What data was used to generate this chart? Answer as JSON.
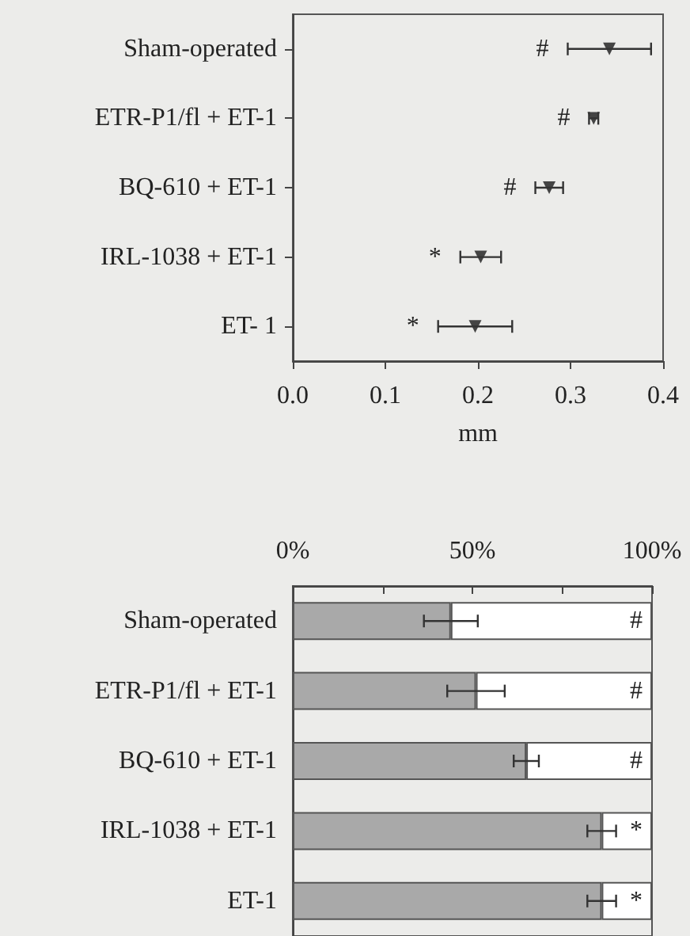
{
  "chart_data": [
    {
      "type": "scatter",
      "orientation": "horizontal",
      "categories": [
        "Sham-operated",
        "ETR-P1/fl + ET-1",
        "BQ-610 + ET-1",
        "IRL-1038 + ET-1",
        "ET- 1"
      ],
      "series": [
        {
          "color": "#1a1a1a",
          "values": [
            0.342,
            0.325,
            0.277,
            0.203,
            0.197
          ],
          "errors": [
            0.045,
            0.005,
            0.015,
            0.022,
            0.04
          ]
        }
      ],
      "xlim": [
        0,
        0.4
      ],
      "xticks": [
        {
          "value": 0,
          "label": "0.0"
        },
        0.1,
        0.2,
        0.3,
        0.4
      ],
      "xlabel": "mm",
      "marker": "triangle",
      "grid": false,
      "annotations": [
        "#",
        "#",
        "#",
        "*",
        "*"
      ]
    },
    {
      "type": "bar",
      "orientation": "horizontal",
      "stacked": true,
      "categories": [
        "Sham-operated",
        "ETR-P1/fl + ET-1",
        "BQ-610 + ET-1",
        "IRL-1038 + ET-1",
        "ET-1"
      ],
      "series": [
        {
          "color": "#a9a9a9",
          "axis": "x2",
          "values": [
            44,
            51,
            65,
            86,
            86
          ],
          "errors": [
            7.5,
            8,
            3.5,
            4,
            4
          ]
        },
        {
          "color": "#ffffff",
          "axis": "x2",
          "values": [
            56,
            49,
            35,
            14,
            14
          ]
        }
      ],
      "x2lim": [
        0,
        100
      ],
      "x2ticks": [
        {
          "value": 0,
          "label": "0%"
        },
        {
          "value": 25,
          "label": null
        },
        {
          "value": 50,
          "label": "50%"
        },
        {
          "value": 75,
          "label": null
        },
        {
          "value": 100,
          "label": "100%"
        }
      ],
      "grid": false,
      "annotations": [
        "#",
        "#",
        "#",
        "*",
        "*"
      ]
    }
  ]
}
